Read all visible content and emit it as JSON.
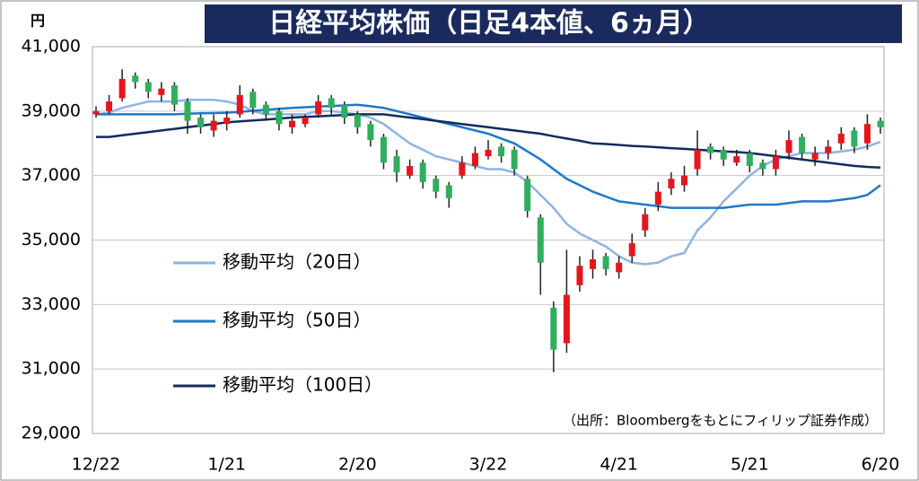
{
  "chart_data": {
    "type": "candlestick",
    "title": "日経平均株価（日足4本値、6ヵ月）",
    "y_unit": "円",
    "source": "（出所：Bloombergをもとにフィリップ証券作成）",
    "categories": [
      "12/22",
      null,
      null,
      null,
      null,
      null,
      null,
      null,
      null,
      null,
      "1/21",
      null,
      null,
      null,
      null,
      null,
      null,
      null,
      null,
      null,
      "2/20",
      null,
      null,
      null,
      null,
      null,
      null,
      null,
      null,
      null,
      "3/22",
      null,
      null,
      null,
      null,
      null,
      null,
      null,
      null,
      null,
      "4/21",
      null,
      null,
      null,
      null,
      null,
      null,
      null,
      null,
      null,
      "5/21",
      null,
      null,
      null,
      null,
      null,
      null,
      null,
      null,
      null,
      "6/20"
    ],
    "open": [
      38900,
      39000,
      39400,
      40100,
      39900,
      39500,
      39800,
      39300,
      38800,
      38400,
      38600,
      38900,
      39600,
      39200,
      39000,
      38500,
      38600,
      38900,
      39400,
      39200,
      38900,
      38600,
      38200,
      37600,
      37000,
      37400,
      36900,
      36700,
      37000,
      37300,
      37600,
      37900,
      37800,
      36900,
      35700,
      32900,
      31800,
      33600,
      34100,
      34500,
      34000,
      34500,
      35300,
      36100,
      36600,
      36700,
      37200,
      37900,
      37800,
      37400,
      37700,
      37400,
      37200,
      37700,
      38200,
      37500,
      37700,
      38000,
      38400,
      38000,
      38700
    ],
    "high": [
      39150,
      39500,
      40300,
      40200,
      40000,
      39900,
      39900,
      39400,
      38900,
      38900,
      39000,
      39800,
      39700,
      39300,
      39100,
      38900,
      38900,
      39500,
      39500,
      39300,
      39000,
      38700,
      38300,
      37800,
      37500,
      37500,
      37000,
      36800,
      37600,
      37900,
      38100,
      38000,
      37900,
      37000,
      35800,
      33100,
      34700,
      34500,
      34700,
      34600,
      34500,
      35200,
      36000,
      36800,
      37100,
      37300,
      38400,
      38000,
      37900,
      37800,
      37800,
      37500,
      37800,
      38400,
      38300,
      37900,
      38100,
      38500,
      38500,
      38900,
      38800
    ],
    "low": [
      38800,
      38900,
      39300,
      39700,
      39400,
      39300,
      39000,
      38300,
      38300,
      38200,
      38400,
      38800,
      38900,
      38700,
      38400,
      38300,
      38500,
      38800,
      38900,
      38600,
      38300,
      37900,
      37200,
      36800,
      36900,
      36600,
      36300,
      36000,
      36900,
      37200,
      37500,
      37400,
      37000,
      35700,
      33300,
      30900,
      31500,
      33400,
      33800,
      33900,
      33800,
      34300,
      35100,
      35900,
      36400,
      36500,
      37000,
      37500,
      37300,
      37300,
      37100,
      37000,
      37000,
      37500,
      37500,
      37300,
      37500,
      37800,
      37700,
      37800,
      38300
    ],
    "close": [
      39000,
      39300,
      40000,
      39900,
      39600,
      39700,
      39200,
      38700,
      38500,
      38700,
      38800,
      39500,
      39100,
      38900,
      38600,
      38700,
      38800,
      39300,
      39100,
      38800,
      38500,
      38100,
      37400,
      37100,
      37300,
      36800,
      36500,
      36300,
      37400,
      37700,
      37800,
      37600,
      37200,
      35900,
      34300,
      31600,
      33300,
      34200,
      34400,
      34100,
      34300,
      34900,
      35800,
      36500,
      36900,
      37000,
      37800,
      37700,
      37500,
      37600,
      37300,
      37200,
      37600,
      38100,
      37700,
      37700,
      37900,
      38300,
      37900,
      38600,
      38500
    ],
    "up_color": "#e8141b",
    "down_color": "#2fae5e",
    "series": [
      {
        "name": "移動平均（20日）",
        "color": "#8fb4e3",
        "values": [
          38900,
          38950,
          39100,
          39200,
          39300,
          39300,
          39300,
          39350,
          39350,
          39350,
          39300,
          39200,
          39000,
          38900,
          38900,
          38900,
          38900,
          39000,
          39000,
          38950,
          38900,
          38800,
          38600,
          38300,
          38000,
          37800,
          37600,
          37500,
          37400,
          37300,
          37200,
          37200,
          37100,
          36800,
          36400,
          36000,
          35500,
          35200,
          35000,
          34800,
          34500,
          34300,
          34250,
          34300,
          34500,
          34600,
          35300,
          35700,
          36200,
          36600,
          37000,
          37300,
          37500,
          37600,
          37700,
          37700,
          37700,
          37750,
          37800,
          37900,
          38050
        ]
      },
      {
        "name": "移動平均（50日）",
        "color": "#1f78c8",
        "values": [
          38900,
          38900,
          38900,
          38900,
          38900,
          38900,
          38900,
          38920,
          38930,
          38940,
          38950,
          38980,
          39010,
          39040,
          39070,
          39100,
          39120,
          39140,
          39160,
          39180,
          39200,
          39150,
          39100,
          39000,
          38900,
          38800,
          38700,
          38600,
          38500,
          38400,
          38300,
          38150,
          38000,
          37750,
          37500,
          37200,
          36900,
          36700,
          36500,
          36350,
          36200,
          36150,
          36100,
          36050,
          36000,
          36000,
          36000,
          36000,
          36000,
          36050,
          36100,
          36100,
          36100,
          36150,
          36200,
          36200,
          36200,
          36250,
          36300,
          36400,
          36700
        ]
      },
      {
        "name": "移動平均（100日）",
        "color": "#132a5e",
        "values": [
          38200,
          38200,
          38250,
          38300,
          38350,
          38400,
          38450,
          38500,
          38550,
          38600,
          38650,
          38680,
          38710,
          38740,
          38770,
          38800,
          38820,
          38840,
          38860,
          38880,
          38900,
          38900,
          38900,
          38850,
          38800,
          38750,
          38700,
          38650,
          38600,
          38550,
          38500,
          38450,
          38400,
          38350,
          38300,
          38220,
          38150,
          38080,
          38000,
          37980,
          37950,
          37920,
          37900,
          37880,
          37850,
          37830,
          37800,
          37780,
          37750,
          37730,
          37700,
          37650,
          37600,
          37550,
          37500,
          37450,
          37400,
          37350,
          37300,
          37270,
          37250
        ]
      }
    ],
    "ylim": [
      29000,
      41000
    ],
    "yticks": [
      {
        "value": 29000,
        "label": "29,000"
      },
      {
        "value": 31000,
        "label": "31,000"
      },
      {
        "value": 33000,
        "label": "33,000"
      },
      {
        "value": 35000,
        "label": "35,000"
      },
      {
        "value": 37000,
        "label": "37,000"
      },
      {
        "value": 39000,
        "label": "39,000"
      },
      {
        "value": 41000,
        "label": "41,000"
      }
    ],
    "grid": true
  }
}
